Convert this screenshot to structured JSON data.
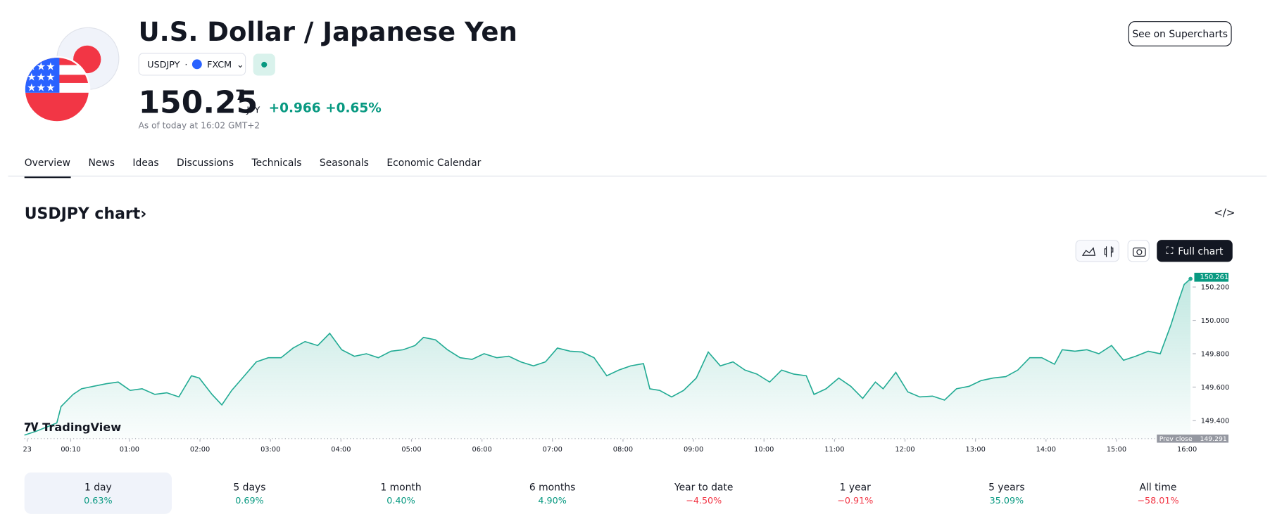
{
  "header": {
    "title": "U.S. Dollar / Japanese Yen",
    "symbol": "USDJPY",
    "exchange": "FXCM",
    "price": "150.25",
    "price_last_digit": "7",
    "currency": "JPY",
    "change": "+0.966",
    "change_percent": "+0.65%",
    "as_of": "As of today at 16:02 GMT+2",
    "button": "See on Supercharts"
  },
  "tabs": [
    "Overview",
    "News",
    "Ideas",
    "Discussions",
    "Technicals",
    "Seasonals",
    "Economic Calendar"
  ],
  "chart_heading": "USDJPY chart",
  "full_chart": "Full chart",
  "watermark": "TradingView",
  "chart_data": {
    "type": "line",
    "color": "#22ab94",
    "x": [
      -0.49,
      -0.32,
      -0.03,
      0.03,
      0.2,
      0.32,
      0.49,
      0.67,
      0.84,
      1.01,
      1.18,
      1.36,
      1.53,
      1.7,
      1.88,
      1.99,
      2.17,
      2.31,
      2.45,
      2.63,
      2.8,
      2.97,
      3.15,
      3.32,
      3.49,
      3.67,
      3.84,
      4.01,
      4.19,
      4.36,
      4.53,
      4.71,
      4.88,
      5.05,
      5.17,
      5.34,
      5.51,
      5.69,
      5.86,
      6.03,
      6.21,
      6.38,
      6.55,
      6.73,
      6.9,
      7.07,
      7.25,
      7.42,
      7.59,
      7.77,
      7.94,
      8.11,
      8.29,
      8.38,
      8.52,
      8.69,
      8.86,
      9.04,
      9.21,
      9.38,
      9.56,
      9.73,
      9.9,
      10.08,
      10.25,
      10.42,
      10.6,
      10.71,
      10.88,
      11.06,
      11.23,
      11.4,
      11.58,
      11.69,
      11.87,
      12.04,
      12.21,
      12.39,
      12.56,
      12.73,
      12.91,
      13.08,
      13.25,
      13.43,
      13.6,
      13.77,
      13.94,
      14.12,
      14.23,
      14.41,
      14.58,
      14.75,
      14.93,
      15.1,
      15.27,
      15.45,
      15.62,
      15.77,
      15.88,
      15.96,
      16.05
    ],
    "values": [
      149.312,
      149.336,
      149.385,
      149.483,
      149.556,
      149.59,
      149.605,
      149.62,
      149.63,
      149.58,
      149.59,
      149.556,
      149.566,
      149.541,
      149.668,
      149.654,
      149.556,
      149.493,
      149.58,
      149.668,
      149.751,
      149.776,
      149.776,
      149.834,
      149.873,
      149.849,
      149.922,
      149.824,
      149.785,
      149.8,
      149.776,
      149.815,
      149.824,
      149.849,
      149.898,
      149.883,
      149.824,
      149.776,
      149.766,
      149.8,
      149.776,
      149.785,
      149.751,
      149.727,
      149.751,
      149.834,
      149.815,
      149.81,
      149.776,
      149.668,
      149.702,
      149.727,
      149.741,
      149.59,
      149.58,
      149.541,
      149.58,
      149.654,
      149.81,
      149.727,
      149.751,
      149.702,
      149.678,
      149.63,
      149.702,
      149.678,
      149.668,
      149.556,
      149.59,
      149.654,
      149.605,
      149.532,
      149.63,
      149.59,
      149.688,
      149.571,
      149.541,
      149.546,
      149.522,
      149.59,
      149.605,
      149.639,
      149.654,
      149.663,
      149.702,
      149.776,
      149.776,
      149.737,
      149.824,
      149.815,
      149.824,
      149.8,
      149.849,
      149.761,
      149.785,
      149.815,
      149.8,
      149.971,
      150.117,
      150.215,
      150.249
    ],
    "xlim": [
      -0.49,
      16.08
    ],
    "ylim": [
      149.288,
      150.263
    ],
    "xticks": [
      {
        "value": -0.45,
        "label": "23"
      },
      {
        "value": 0.1667,
        "label": "00:10"
      },
      {
        "value": 1,
        "label": "01:00"
      },
      {
        "value": 2,
        "label": "02:00"
      },
      {
        "value": 3,
        "label": "03:00"
      },
      {
        "value": 4,
        "label": "04:00"
      },
      {
        "value": 5,
        "label": "05:00"
      },
      {
        "value": 6,
        "label": "06:00"
      },
      {
        "value": 7,
        "label": "07:00"
      },
      {
        "value": 8,
        "label": "08:00"
      },
      {
        "value": 9,
        "label": "09:00"
      },
      {
        "value": 10,
        "label": "10:00"
      },
      {
        "value": 11,
        "label": "11:00"
      },
      {
        "value": 12,
        "label": "12:00"
      },
      {
        "value": 13,
        "label": "13:00"
      },
      {
        "value": 14,
        "label": "14:00"
      },
      {
        "value": 15,
        "label": "15:00"
      },
      {
        "value": 16,
        "label": "16:00"
      }
    ],
    "yticks": [
      {
        "value": 149.4,
        "label": "149.400"
      },
      {
        "value": 149.6,
        "label": "149.600"
      },
      {
        "value": 149.8,
        "label": "149.800"
      },
      {
        "value": 150,
        "label": "150.000"
      },
      {
        "value": 150.2,
        "label": "150.200"
      }
    ],
    "last_price": 150.261,
    "prev_close_label": "Prev close",
    "prev_close": 149.291
  },
  "periods": [
    {
      "label": "1 day",
      "change": "0.63%",
      "color": "#089981"
    },
    {
      "label": "5 days",
      "change": "0.69%",
      "color": "#089981"
    },
    {
      "label": "1 month",
      "change": "0.40%",
      "color": "#089981"
    },
    {
      "label": "6 months",
      "change": "4.90%",
      "color": "#089981"
    },
    {
      "label": "Year to date",
      "change": "−4.50%",
      "color": "#f23645"
    },
    {
      "label": "1 year",
      "change": "−0.91%",
      "color": "#f23645"
    },
    {
      "label": "5 years",
      "change": "35.09%",
      "color": "#089981"
    },
    {
      "label": "All time",
      "change": "−58.01%",
      "color": "#f23645"
    }
  ]
}
